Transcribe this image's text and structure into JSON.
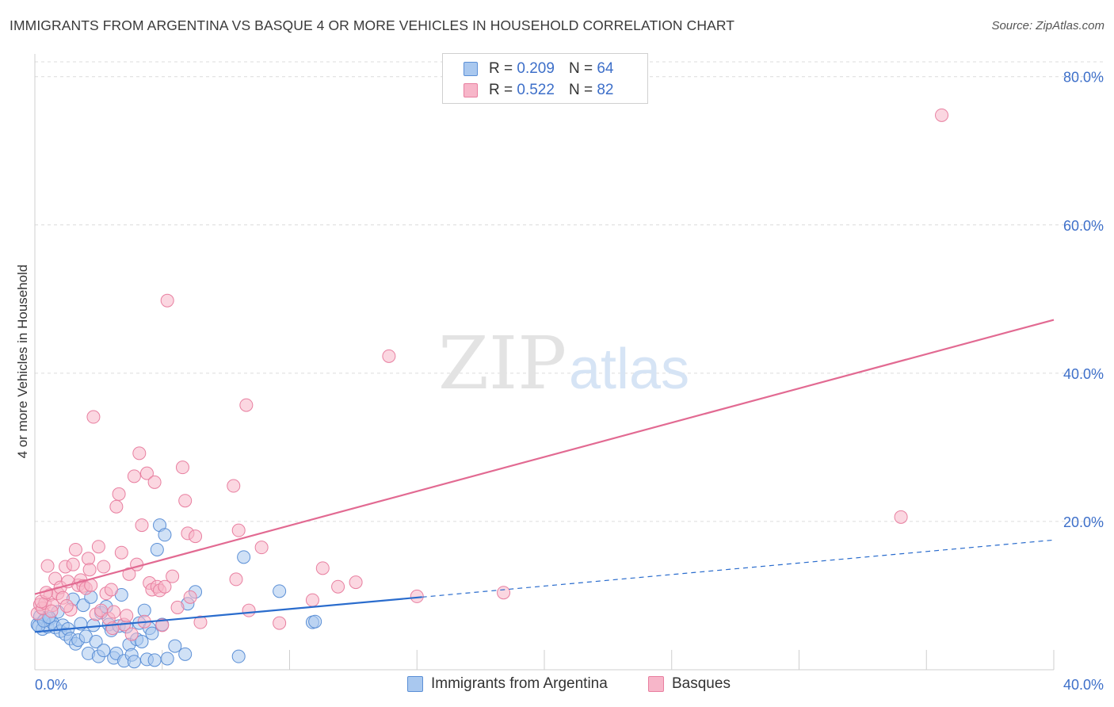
{
  "header": {
    "title": "IMMIGRANTS FROM ARGENTINA VS BASQUE 4 OR MORE VEHICLES IN HOUSEHOLD CORRELATION CHART",
    "source": "Source: ZipAtlas.com"
  },
  "legend": {
    "series": [
      {
        "r_label": "R =",
        "r_value": "0.209",
        "n_label": "N =",
        "n_value": "64",
        "color": "#a9c8ef"
      },
      {
        "r_label": "R =",
        "r_value": "0.522",
        "n_label": "N =",
        "n_value": "82",
        "color": "#f7b6c9"
      }
    ]
  },
  "bottom_legend": {
    "argentina": "Immigrants from Argentina",
    "basques": "Basques"
  },
  "watermark": {
    "zip": "ZIP",
    "atlas": "atlas"
  },
  "chart_data": {
    "type": "scatter",
    "title": "IMMIGRANTS FROM ARGENTINA VS BASQUE 4 OR MORE VEHICLES IN HOUSEHOLD CORRELATION CHART",
    "xlabel": "",
    "ylabel": "4 or more Vehicles in Household",
    "xlim": [
      0,
      40
    ],
    "ylim": [
      0,
      82
    ],
    "x_tick_labels": [
      {
        "value": 0,
        "label": "0.0%"
      },
      {
        "value": 40,
        "label": "40.0%"
      }
    ],
    "y_tick_labels": [
      {
        "value": 20,
        "label": "20.0%"
      },
      {
        "value": 40,
        "label": "40.0%"
      },
      {
        "value": 60,
        "label": "60.0%"
      },
      {
        "value": 80,
        "label": "80.0%"
      }
    ],
    "grid": true,
    "colors": {
      "argentina_fill": "#a9c8ef",
      "argentina_stroke": "#5b8fd6",
      "argentina_line": "#2a6ccd",
      "basques_fill": "#f7b6c9",
      "basques_stroke": "#e87fa0",
      "basques_line": "#e26a92"
    },
    "series": [
      {
        "name": "Immigrants from Argentina",
        "r": 0.209,
        "n": 64,
        "trend": {
          "x0": 0,
          "y0": 5.1,
          "x1": 15.2,
          "y1": 9.8,
          "dashed_to_x": 40,
          "dashed_to_y": 17.5
        },
        "points": [
          [
            0.1,
            6.1
          ],
          [
            0.2,
            7.2
          ],
          [
            0.3,
            5.5
          ],
          [
            0.4,
            6.8
          ],
          [
            0.5,
            5.8
          ],
          [
            0.6,
            6.9
          ],
          [
            0.7,
            6.3
          ],
          [
            0.8,
            5.7
          ],
          [
            0.9,
            7.8
          ],
          [
            1.0,
            5.2
          ],
          [
            1.1,
            6.0
          ],
          [
            1.2,
            4.8
          ],
          [
            1.3,
            5.5
          ],
          [
            1.4,
            4.2
          ],
          [
            1.5,
            9.5
          ],
          [
            1.6,
            3.5
          ],
          [
            1.7,
            4.0
          ],
          [
            1.8,
            6.2
          ],
          [
            1.9,
            8.7
          ],
          [
            2.0,
            4.5
          ],
          [
            2.1,
            2.2
          ],
          [
            2.2,
            9.8
          ],
          [
            2.3,
            6.0
          ],
          [
            2.4,
            3.8
          ],
          [
            2.5,
            1.8
          ],
          [
            2.6,
            7.7
          ],
          [
            2.7,
            2.6
          ],
          [
            2.8,
            8.5
          ],
          [
            2.9,
            6.1
          ],
          [
            3.0,
            5.3
          ],
          [
            3.1,
            1.6
          ],
          [
            3.2,
            2.2
          ],
          [
            3.3,
            5.9
          ],
          [
            3.4,
            10.1
          ],
          [
            3.5,
            1.2
          ],
          [
            3.6,
            5.8
          ],
          [
            3.7,
            3.4
          ],
          [
            3.8,
            2.0
          ],
          [
            3.9,
            1.1
          ],
          [
            4.0,
            4.1
          ],
          [
            4.1,
            6.3
          ],
          [
            4.2,
            3.8
          ],
          [
            4.3,
            8.0
          ],
          [
            4.4,
            1.4
          ],
          [
            4.5,
            5.6
          ],
          [
            4.6,
            4.9
          ],
          [
            4.7,
            1.3
          ],
          [
            4.8,
            16.2
          ],
          [
            4.9,
            19.5
          ],
          [
            5.0,
            6.1
          ],
          [
            5.1,
            18.2
          ],
          [
            5.2,
            1.5
          ],
          [
            5.5,
            3.2
          ],
          [
            5.9,
            2.1
          ],
          [
            6.0,
            8.9
          ],
          [
            6.3,
            10.5
          ],
          [
            8.2,
            15.2
          ],
          [
            8.0,
            1.8
          ],
          [
            9.6,
            10.6
          ],
          [
            10.9,
            6.4
          ],
          [
            11.0,
            6.5
          ],
          [
            0.15,
            5.9
          ],
          [
            0.35,
            6.6
          ],
          [
            0.55,
            7.1
          ]
        ]
      },
      {
        "name": "Basques",
        "r": 0.522,
        "n": 82,
        "trend": {
          "x0": 0,
          "y0": 10.2,
          "x1": 40,
          "y1": 47.2
        },
        "points": [
          [
            0.1,
            7.6
          ],
          [
            0.2,
            8.8
          ],
          [
            0.3,
            8.3
          ],
          [
            0.4,
            9.0
          ],
          [
            0.5,
            14.0
          ],
          [
            0.6,
            10.1
          ],
          [
            0.7,
            8.7
          ],
          [
            0.8,
            12.3
          ],
          [
            0.9,
            10.3
          ],
          [
            1.0,
            11.1
          ],
          [
            1.1,
            9.7
          ],
          [
            1.2,
            13.9
          ],
          [
            1.3,
            11.9
          ],
          [
            1.4,
            8.1
          ],
          [
            1.5,
            14.2
          ],
          [
            1.6,
            16.2
          ],
          [
            1.7,
            11.4
          ],
          [
            1.8,
            12.1
          ],
          [
            1.9,
            11.3
          ],
          [
            2.0,
            11.0
          ],
          [
            2.1,
            15.0
          ],
          [
            2.2,
            11.4
          ],
          [
            2.3,
            34.1
          ],
          [
            2.4,
            7.5
          ],
          [
            2.5,
            16.6
          ],
          [
            2.6,
            8.0
          ],
          [
            2.7,
            13.9
          ],
          [
            2.8,
            10.3
          ],
          [
            2.9,
            6.9
          ],
          [
            3.0,
            10.8
          ],
          [
            3.1,
            7.8
          ],
          [
            3.2,
            22.0
          ],
          [
            3.3,
            23.7
          ],
          [
            3.4,
            15.8
          ],
          [
            3.5,
            6.1
          ],
          [
            3.6,
            7.3
          ],
          [
            3.7,
            12.9
          ],
          [
            3.8,
            4.8
          ],
          [
            3.9,
            26.1
          ],
          [
            4.0,
            14.2
          ],
          [
            4.1,
            29.2
          ],
          [
            4.2,
            19.5
          ],
          [
            4.3,
            6.5
          ],
          [
            4.4,
            26.5
          ],
          [
            4.5,
            11.7
          ],
          [
            4.6,
            10.8
          ],
          [
            4.7,
            25.3
          ],
          [
            4.8,
            11.2
          ],
          [
            4.9,
            10.7
          ],
          [
            5.0,
            6.0
          ],
          [
            5.1,
            11.2
          ],
          [
            5.2,
            49.8
          ],
          [
            5.4,
            12.6
          ],
          [
            5.6,
            8.4
          ],
          [
            5.8,
            27.3
          ],
          [
            5.9,
            22.8
          ],
          [
            6.0,
            18.4
          ],
          [
            6.1,
            9.8
          ],
          [
            6.3,
            18.0
          ],
          [
            6.5,
            6.4
          ],
          [
            7.8,
            24.8
          ],
          [
            7.9,
            12.2
          ],
          [
            8.0,
            18.8
          ],
          [
            8.3,
            35.7
          ],
          [
            8.4,
            8.0
          ],
          [
            8.9,
            16.5
          ],
          [
            9.6,
            6.3
          ],
          [
            10.9,
            9.4
          ],
          [
            11.3,
            13.7
          ],
          [
            11.9,
            11.2
          ],
          [
            12.6,
            11.8
          ],
          [
            13.9,
            42.3
          ],
          [
            15.0,
            9.9
          ],
          [
            18.4,
            10.4
          ],
          [
            34.0,
            20.6
          ],
          [
            35.6,
            74.8
          ],
          [
            0.25,
            9.2
          ],
          [
            0.45,
            10.4
          ],
          [
            0.65,
            7.9
          ],
          [
            1.25,
            8.6
          ],
          [
            2.15,
            13.5
          ],
          [
            3.05,
            5.6
          ]
        ]
      }
    ]
  }
}
